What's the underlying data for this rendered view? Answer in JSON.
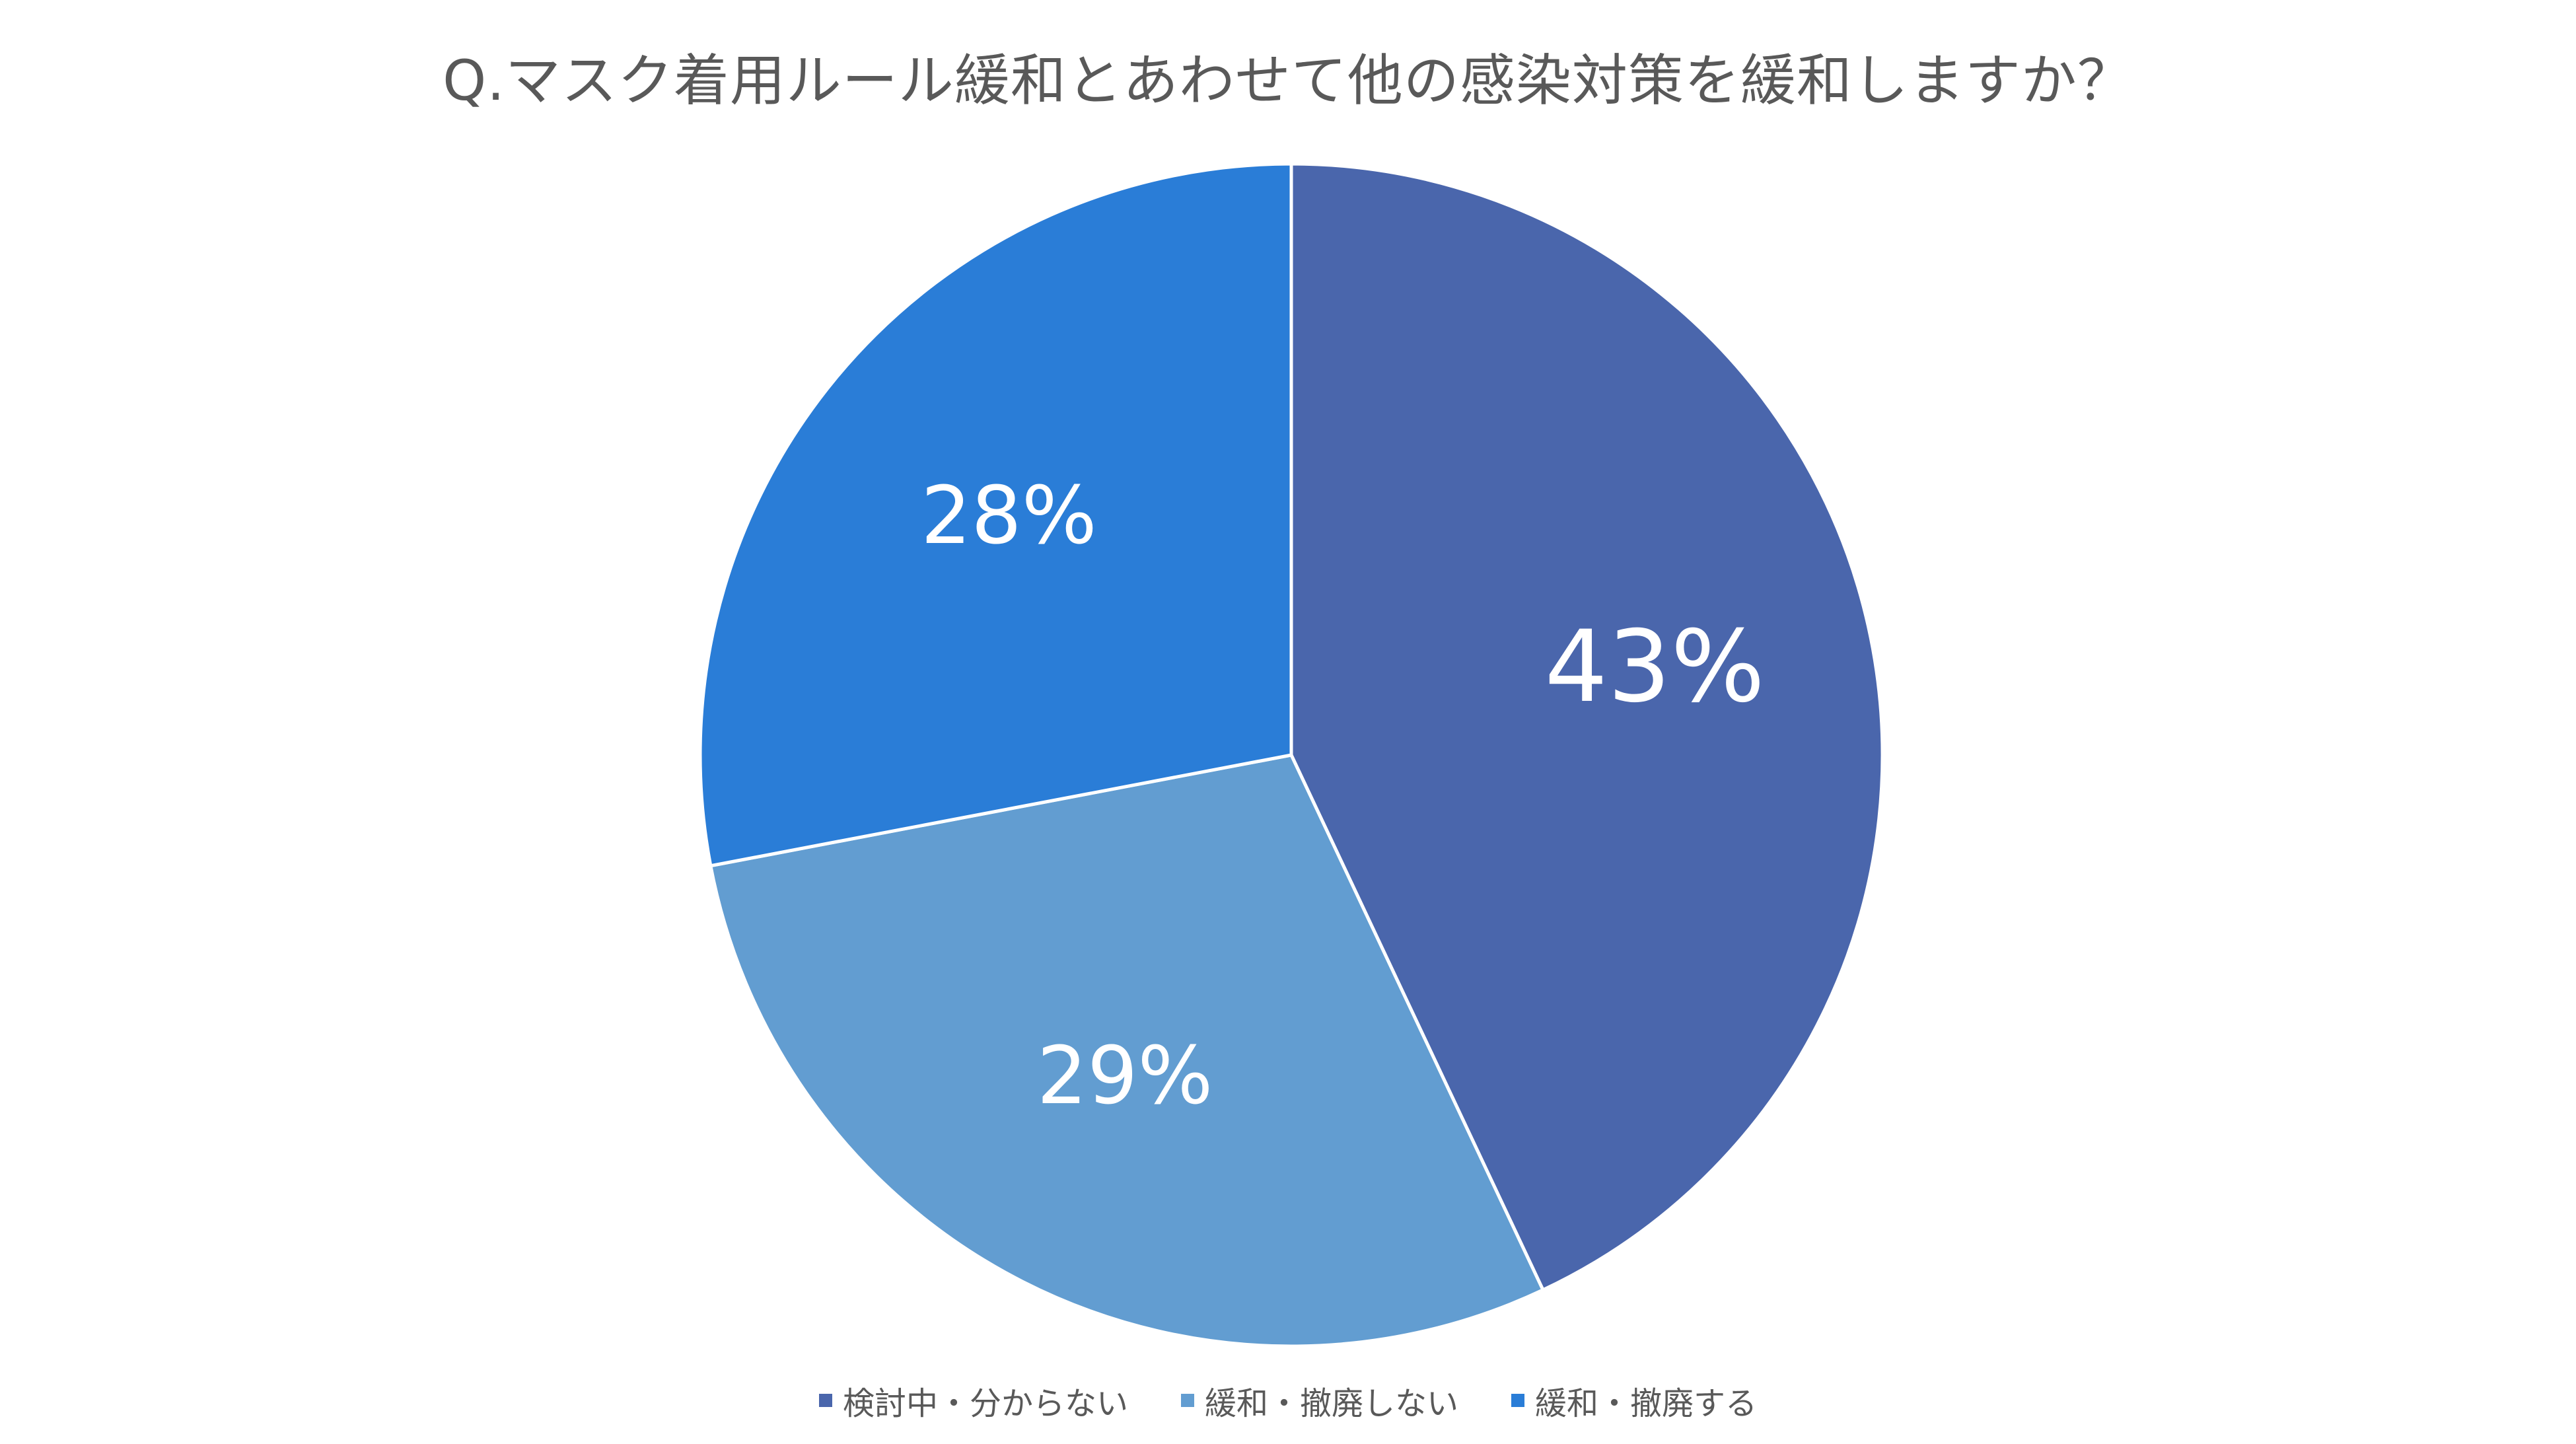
{
  "chart_data": {
    "type": "pie",
    "title": "Q.マスク着用ルール緩和とあわせて他の感染対策を緩和しますか？",
    "start_angle_deg": 0,
    "direction": "clockwise",
    "slices": [
      {
        "name": "検討中・分からない",
        "value": 43,
        "label": "43%",
        "color": "#4A66AC"
      },
      {
        "name": "緩和・撤廃しない",
        "value": 29,
        "label": "29%",
        "color": "#629DD1"
      },
      {
        "name": "緩和・撤廃する",
        "value": 28,
        "label": "28%",
        "color": "#2A7DD7"
      }
    ],
    "legend_position": "bottom",
    "border_color": "#ffffff"
  }
}
